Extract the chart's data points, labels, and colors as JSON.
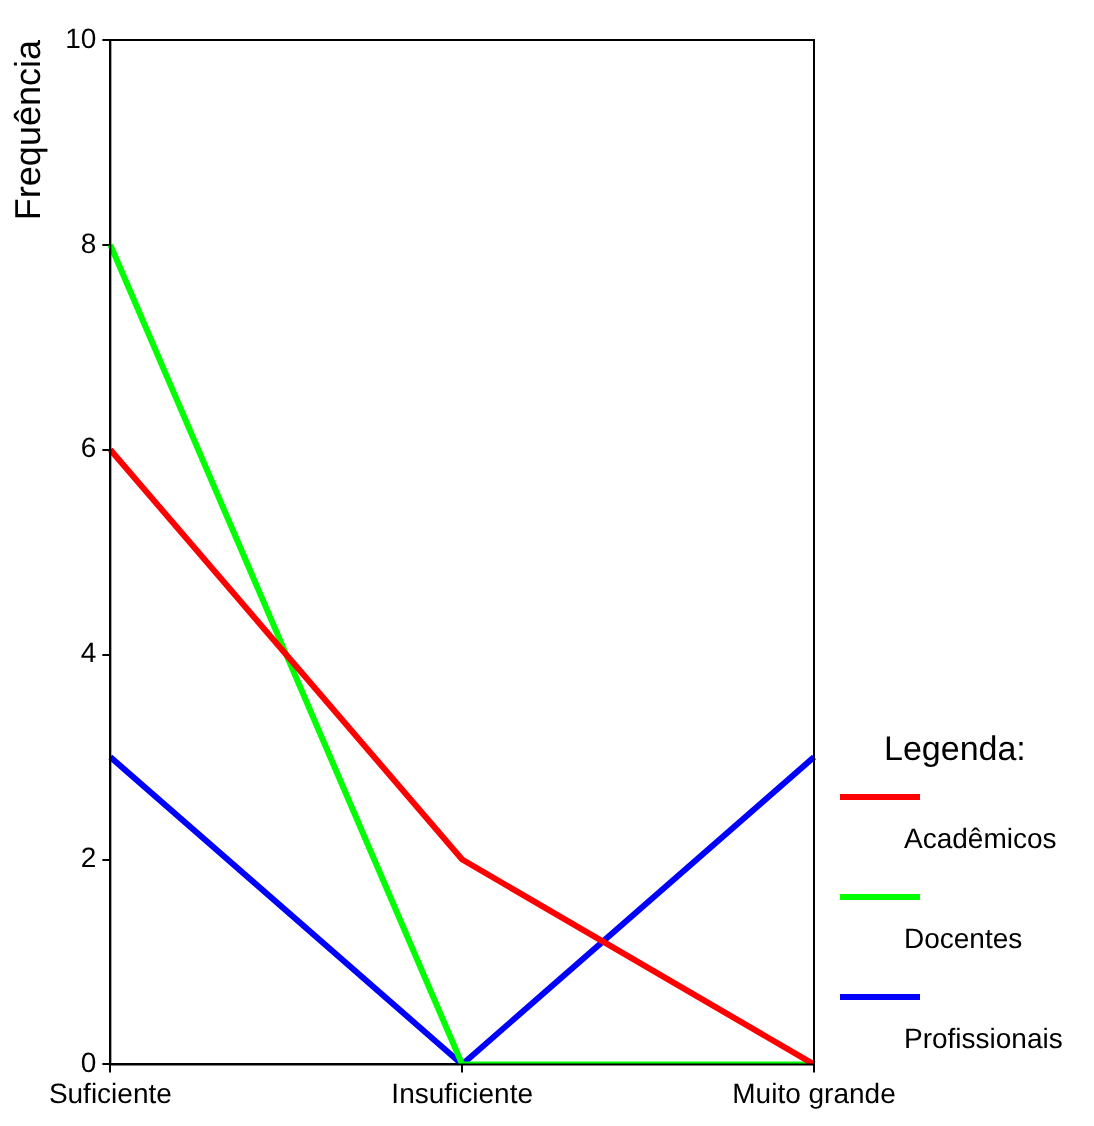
{
  "chart_data": {
    "type": "line",
    "ylabel": "Frequência",
    "legend_title": "Legenda:",
    "legend": "right",
    "grid": false,
    "marker": "none",
    "line_style": "solid",
    "categories": [
      "Suficiente",
      "Insuficiente",
      "Muito grande"
    ],
    "ylim": [
      0,
      10
    ],
    "yticks": [
      0,
      2,
      4,
      6,
      8,
      10
    ],
    "series": [
      {
        "name": "Acadêmicos",
        "color": "#ff0000",
        "values": [
          6,
          2,
          0
        ]
      },
      {
        "name": "Docentes",
        "color": "#00ff00",
        "values": [
          8,
          0,
          0
        ]
      },
      {
        "name": "Profissionais",
        "color": "#0000ff",
        "values": [
          3,
          0,
          3
        ]
      }
    ]
  }
}
